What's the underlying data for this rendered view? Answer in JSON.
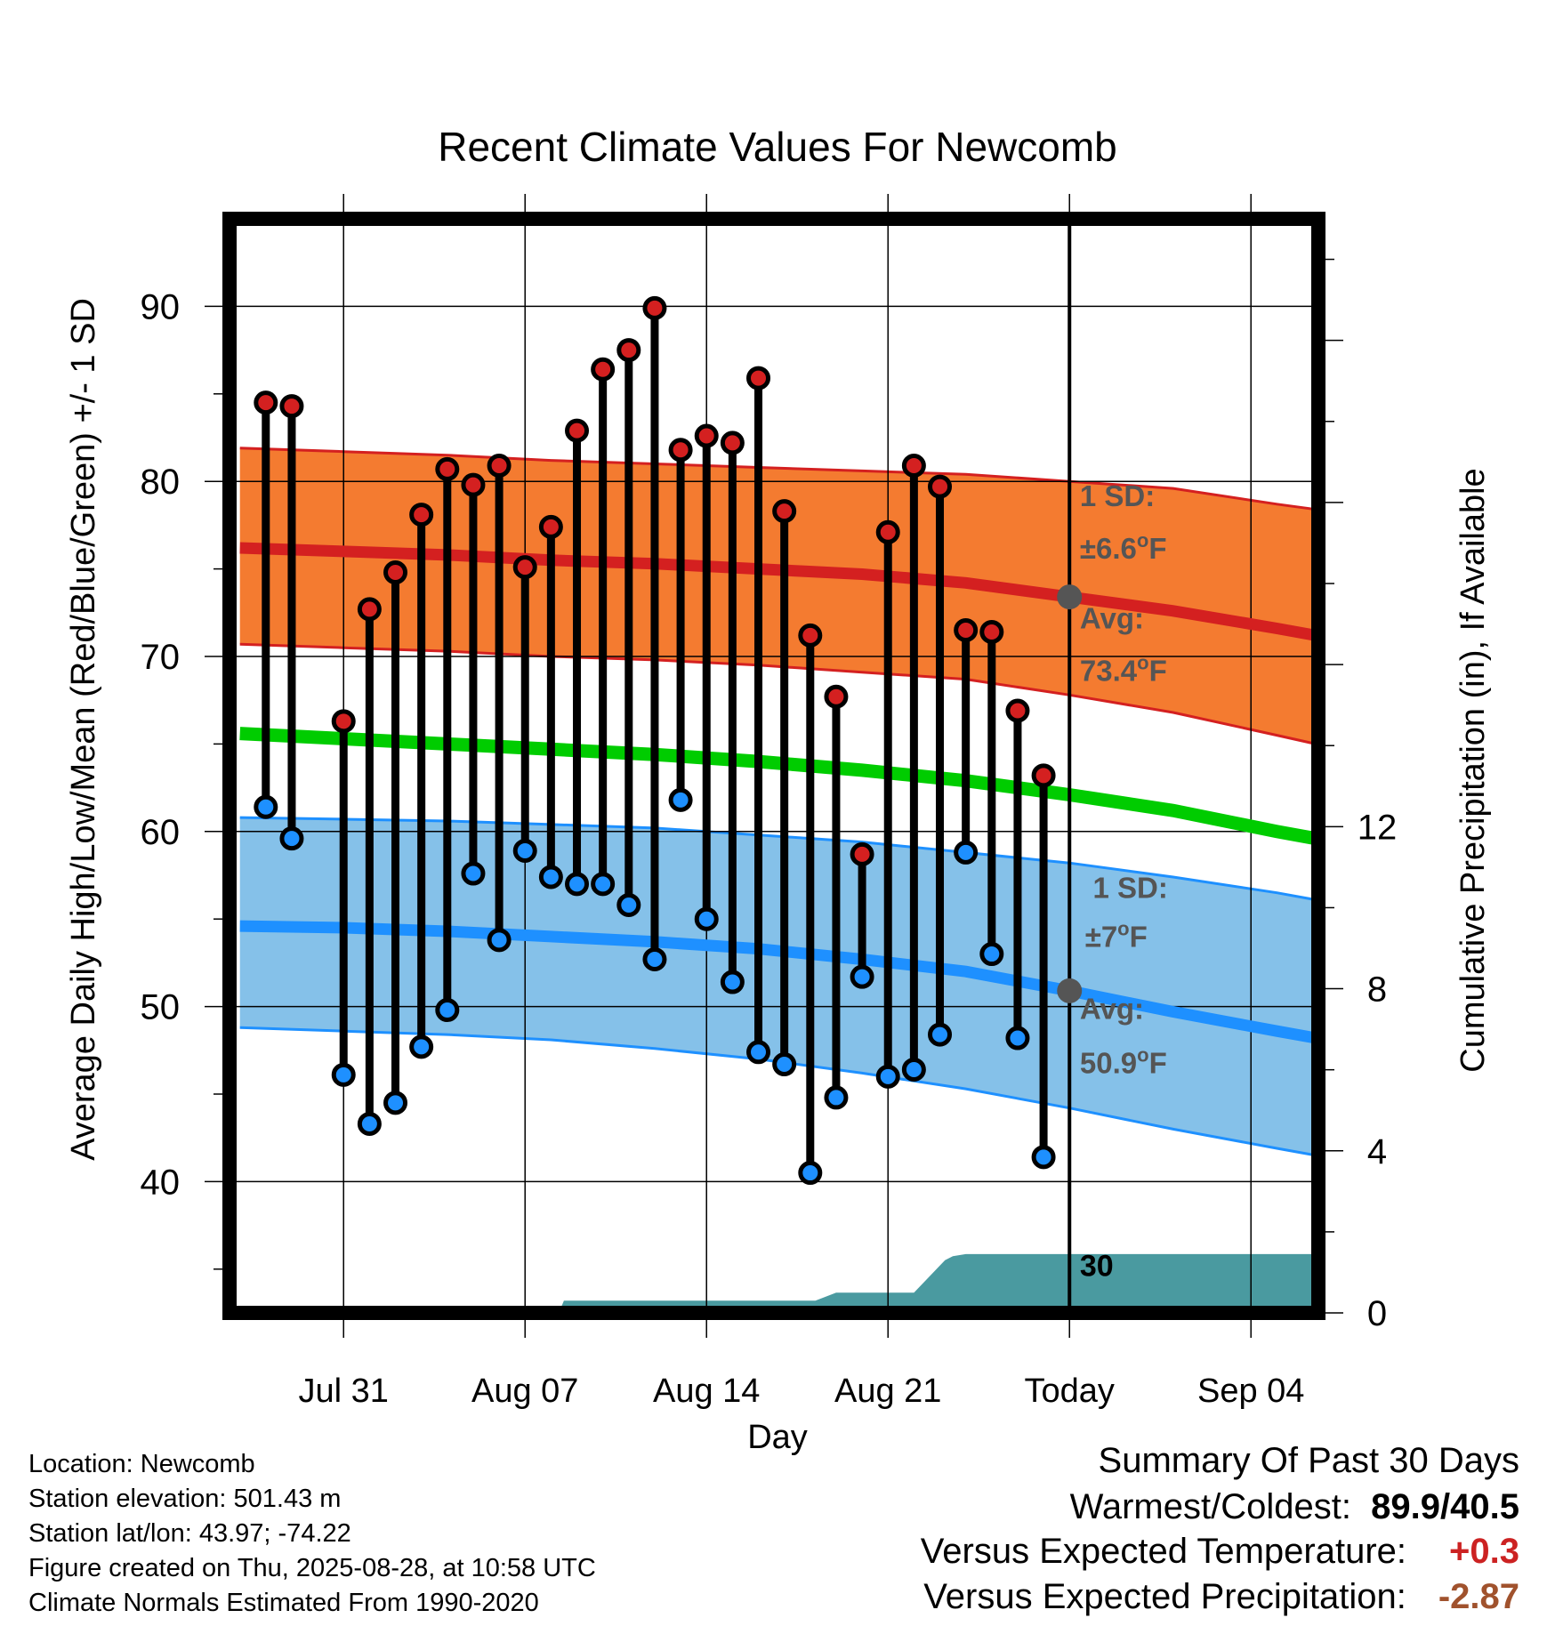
{
  "chart_data": {
    "type": "line",
    "title": "Recent Climate Values For Newcomb",
    "xlabel": "Day",
    "ylabel": "Average Daily High/Low/Mean (Red/Blue/Green) +/- 1 SD",
    "y2label": "Cumulative Precipitation (in), If Available",
    "x_tick_labels": [
      "Jul 31",
      "Aug 07",
      "Aug 14",
      "Aug 21",
      "Today",
      "Sep 04"
    ],
    "y_ticks": [
      40,
      50,
      60,
      70,
      80,
      90
    ],
    "y2_ticks": [
      0,
      4,
      8,
      12
    ],
    "y2_range": [
      0,
      27
    ],
    "ylim": [
      32.5,
      95
    ],
    "x_range_days": [
      -32.4,
      9.6
    ],
    "grid": true,
    "daily": {
      "day_offset": [
        -31,
        -30,
        -28,
        -27,
        -26,
        -25,
        -24,
        -23,
        -22,
        -21,
        -20,
        -19,
        -18,
        -17,
        -16,
        -15,
        -14,
        -13,
        -12,
        -11,
        -10,
        -9,
        -8,
        -7,
        -6,
        -5,
        -4,
        -3,
        -2,
        -1
      ],
      "high": [
        84.5,
        84.3,
        66.3,
        72.7,
        74.8,
        78.1,
        80.7,
        79.8,
        80.9,
        75.1,
        77.4,
        82.9,
        86.4,
        87.5,
        89.9,
        81.8,
        82.6,
        82.2,
        85.9,
        78.3,
        71.2,
        67.7,
        58.7,
        77.1,
        80.9,
        79.7,
        71.5,
        71.4,
        66.9,
        63.2
      ],
      "low": [
        61.4,
        59.6,
        46.1,
        43.3,
        44.5,
        47.7,
        49.8,
        57.6,
        53.8,
        58.9,
        57.4,
        57.0,
        57.0,
        55.8,
        52.7,
        61.8,
        55.0,
        51.4,
        47.4,
        46.7,
        40.5,
        44.8,
        51.7,
        46.0,
        46.4,
        48.4,
        58.8,
        53.0,
        48.2,
        41.4
      ]
    },
    "normals": {
      "day_offset": [
        -32,
        -28,
        -24,
        -20,
        -16,
        -12,
        -8,
        -4,
        0,
        4,
        8,
        9.5
      ],
      "high_mean": [
        76.2,
        76.0,
        75.8,
        75.5,
        75.3,
        75.0,
        74.7,
        74.2,
        73.4,
        72.6,
        71.6,
        71.2
      ],
      "high_upper": [
        81.9,
        81.7,
        81.5,
        81.2,
        81.0,
        80.8,
        80.6,
        80.4,
        80.0,
        79.6,
        78.7,
        78.4
      ],
      "high_lower": [
        70.7,
        70.5,
        70.3,
        70.0,
        69.8,
        69.5,
        69.1,
        68.7,
        67.8,
        66.8,
        65.5,
        65.0
      ],
      "mean": [
        65.6,
        65.3,
        65.0,
        64.7,
        64.4,
        64.0,
        63.5,
        62.9,
        62.1,
        61.2,
        60.0,
        59.6
      ],
      "low_mean": [
        54.6,
        54.5,
        54.3,
        54.0,
        53.7,
        53.3,
        52.7,
        52.0,
        50.9,
        49.7,
        48.6,
        48.2
      ],
      "low_upper": [
        60.8,
        60.7,
        60.6,
        60.4,
        60.2,
        59.8,
        59.4,
        58.8,
        58.2,
        57.4,
        56.5,
        56.1
      ],
      "low_lower": [
        48.8,
        48.6,
        48.4,
        48.1,
        47.6,
        47.0,
        46.2,
        45.3,
        44.2,
        43.0,
        41.9,
        41.5
      ]
    },
    "precip_cumulative": {
      "day_offset": [
        -32,
        -19.7,
        -19.5,
        -13,
        -9.8,
        -9.0,
        -6.0,
        -4.8,
        -4.5,
        -4.0,
        9.6
      ],
      "value": [
        0,
        0,
        0.3,
        0.3,
        0.3,
        0.5,
        0.5,
        1.3,
        1.4,
        1.45,
        1.45
      ]
    },
    "annotations": {
      "high_sd_label": "1 SD:",
      "high_sd_value": "±6.6",
      "high_avg_label": "Avg:",
      "high_avg_value": "73.4",
      "low_sd_label": "1 SD:",
      "low_sd_value": "±7",
      "low_avg_label": "Avg:",
      "low_avg_value": "50.9",
      "degree_mark": "o",
      "unit_letter": "F",
      "window_count": "30",
      "window_unit": "Days"
    },
    "colors": {
      "high_band": "#f47b30",
      "high_line": "#d42020",
      "mean_line": "#00cc00",
      "low_band": "#85c1e9",
      "low_line": "#1e90ff",
      "precip_fill": "#4a9aa0",
      "high_dot": "#d42020",
      "low_dot": "#1e90ff",
      "marker": "#555555",
      "annotation_text": "#555555"
    }
  },
  "footer": {
    "location": "Location: Newcomb",
    "elevation": "Station elevation: 501.43 m",
    "latlon": "Station lat/lon: 43.97; -74.22",
    "created": "Figure created on Thu, 2025-08-28, at 10:58 UTC",
    "normals": "Climate Normals Estimated From 1990-2020"
  },
  "summary": {
    "title": "Summary Of Past 30 Days",
    "warm_cold_label": "Warmest/Coldest:",
    "warm_cold_value": "89.9/40.5",
    "temp_label": "Versus Expected Temperature:",
    "temp_value": "+0.3",
    "temp_color": "#cc2222",
    "precip_label": "Versus Expected Precipitation:",
    "precip_value": "-2.87",
    "precip_color": "#a0522d"
  }
}
